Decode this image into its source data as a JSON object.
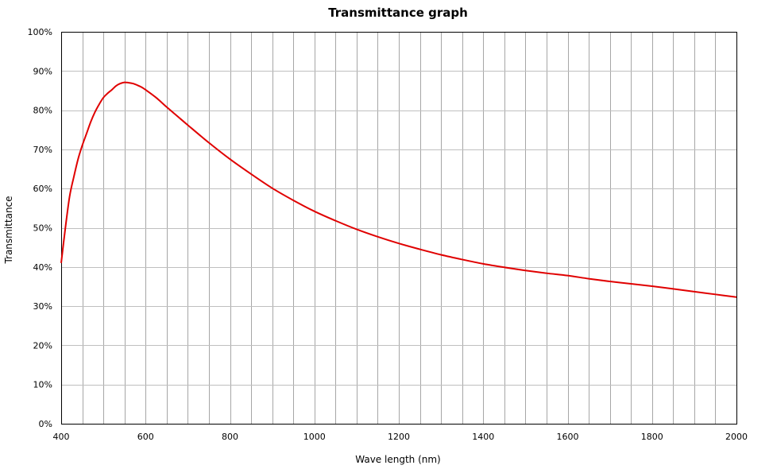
{
  "chart_data": {
    "type": "line",
    "title": "Transmittance graph",
    "xlabel": "Wave length (nm)",
    "ylabel": "Transmittance",
    "xlim": [
      400,
      2000
    ],
    "ylim": [
      0,
      100
    ],
    "x_major_ticks": [
      400,
      600,
      800,
      1000,
      1200,
      1400,
      1600,
      1800,
      2000
    ],
    "x_tick_labels": [
      "400",
      "600",
      "800",
      "1000",
      "1200",
      "1400",
      "1600",
      "1800",
      "2000"
    ],
    "x_grid_step": 50,
    "y_ticks": [
      0,
      10,
      20,
      30,
      40,
      50,
      60,
      70,
      80,
      90,
      100
    ],
    "y_tick_labels": [
      "0%",
      "10%",
      "20%",
      "30%",
      "40%",
      "50%",
      "60%",
      "70%",
      "80%",
      "90%",
      "100%"
    ],
    "grid": true,
    "legend": "none",
    "series": [
      {
        "color": "#e00000",
        "x": [
          400,
          410,
          420,
          430,
          440,
          450,
          460,
          470,
          480,
          490,
          500,
          510,
          520,
          530,
          540,
          550,
          560,
          570,
          580,
          590,
          600,
          625,
          650,
          675,
          700,
          750,
          800,
          850,
          900,
          950,
          1000,
          1050,
          1100,
          1150,
          1200,
          1250,
          1300,
          1350,
          1400,
          1450,
          1500,
          1550,
          1600,
          1650,
          1700,
          1750,
          1800,
          1850,
          1900,
          1950,
          2000
        ],
        "y": [
          41,
          50,
          58,
          63,
          67.5,
          71,
          74,
          77,
          79.5,
          81.5,
          83.2,
          84.3,
          85.2,
          86.2,
          86.8,
          87.1,
          87.0,
          86.8,
          86.4,
          85.9,
          85.2,
          83.2,
          80.8,
          78.5,
          76.2,
          71.7,
          67.5,
          63.7,
          60.1,
          57.0,
          54.2,
          51.8,
          49.6,
          47.7,
          46.0,
          44.5,
          43.1,
          41.9,
          40.8,
          39.9,
          39.1,
          38.4,
          37.8,
          37.0,
          36.3,
          35.7,
          35.1,
          34.4,
          33.7,
          33.0,
          32.3
        ]
      }
    ]
  }
}
